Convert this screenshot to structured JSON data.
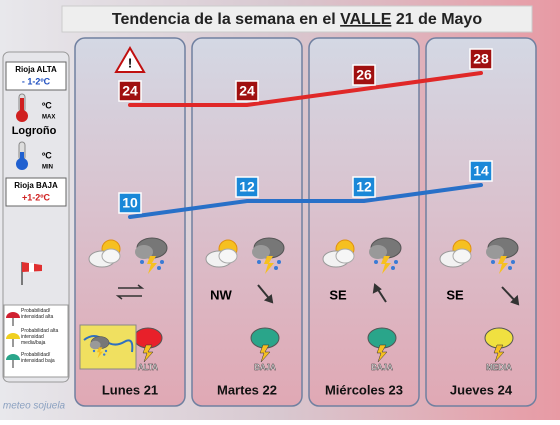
{
  "title": {
    "prefix": "Tendencia de la semana en el",
    "highlight": "VALLE",
    "suffix": "21 de Mayo"
  },
  "legend": {
    "rioja_alta": "Rioja ALTA",
    "alta_delta": "- 1-2ºC",
    "max_unit": "ºC",
    "max_label": "MAX",
    "city": "Logroño",
    "min_unit": "ºC",
    "min_label": "MIN",
    "rioja_baja": "Rioja BAJA",
    "baja_delta": "+1-2ºC",
    "storm_high": "Probabilidad/ intensidad alta",
    "storm_mid": "Probabilidad alta intensidad media/baja",
    "storm_low": "Probabilidad/ intensidad baja"
  },
  "days": [
    {
      "label": "Lunes 21",
      "max": 24,
      "min": 10,
      "storm": "ALTA",
      "storm_color": "#e8202a"
    },
    {
      "label": "Martes 22",
      "max": 24,
      "min": 12,
      "wind": "NW",
      "storm": "BAJA",
      "storm_color": "#2aa58a"
    },
    {
      "label": "Miércoles 23",
      "max": 26,
      "min": 12,
      "wind": "SE",
      "storm": "BAJA",
      "storm_color": "#2aa58a"
    },
    {
      "label": "Jueves 24",
      "max": 28,
      "min": 14,
      "wind": "SE",
      "storm": "MEDIA",
      "storm_color": "#f0e040"
    }
  ],
  "logo": "meteo sojuela"
}
